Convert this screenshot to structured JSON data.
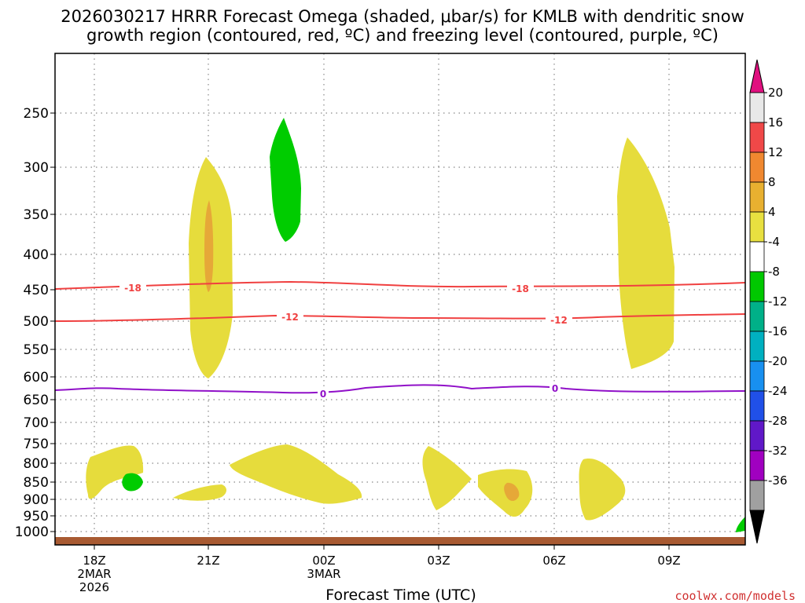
{
  "chart_data": {
    "type": "heatmap",
    "title_line1": "2026030217 HRRR Forecast Omega (shaded, μbar/s) for KMLB with dendritic snow",
    "title_line2": "growth region (contoured, red, ºC) and freezing level (contoured, purple, ºC)",
    "xlabel": "Forecast Time (UTC)",
    "credit": "coolwx.com/models",
    "y_ticks": [
      "250",
      "300",
      "350",
      "400",
      "450",
      "500",
      "550",
      "600",
      "650",
      "700",
      "750",
      "800",
      "850",
      "900",
      "950",
      "1000"
    ],
    "x_ticks": [
      {
        "label": "18Z",
        "sub1": "2MAR",
        "sub2": "2026"
      },
      {
        "label": "21Z",
        "sub1": "",
        "sub2": ""
      },
      {
        "label": "00Z",
        "sub1": "3MAR",
        "sub2": ""
      },
      {
        "label": "03Z",
        "sub1": "",
        "sub2": ""
      },
      {
        "label": "06Z",
        "sub1": "",
        "sub2": ""
      },
      {
        "label": "09Z",
        "sub1": "",
        "sub2": ""
      }
    ],
    "colorbar": {
      "labels": [
        "20",
        "16",
        "12",
        "8",
        "4",
        "-4",
        "-8",
        "-12",
        "-16",
        "-20",
        "-24",
        "-28",
        "-32",
        "-36"
      ],
      "colors": [
        "#e8e8e8",
        "#f04848",
        "#f08830",
        "#e8b030",
        "#e8e040",
        "#ffffff",
        "#00c800",
        "#00b088",
        "#00b0c0",
        "#1890f0",
        "#2050e8",
        "#6018c8",
        "#a000c0",
        "#a0a0a0"
      ],
      "top_arrow_color": "#e0107f",
      "bottom_arrow_color": "#000000"
    },
    "contours": {
      "dgz_color": "#f04040",
      "freezing_color": "#9010c8",
      "dgz_label_top": "-18",
      "dgz_label_bottom": "-12",
      "freezing_label": "0"
    },
    "omega_regions": [
      {
        "name": "yellow-plume-21z",
        "value_range": "4 to 8"
      },
      {
        "name": "orange-core-21z",
        "value_range": "8 to 12"
      },
      {
        "name": "green-plume-2230z",
        "value_range": "-8 to -4"
      },
      {
        "name": "yellow-plume-08z",
        "value_range": "4 to 8"
      }
    ],
    "colors": {
      "yellow": "#e6dc3c",
      "orange": "#e6a838",
      "green": "#00cc00",
      "terrain": "#a85a32",
      "grid": "#888888"
    }
  }
}
